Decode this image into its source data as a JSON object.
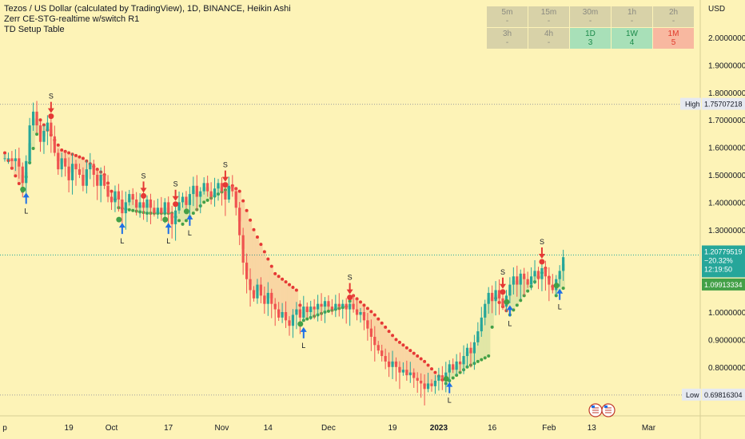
{
  "legend": {
    "title": "Tezos / US Dollar (calculated by TradingView), 1D, BINANCE, Heikin Ashi",
    "indicator1": "Zerr CE-STG-realtime w/switch R1",
    "indicator2": "TD Setup Table"
  },
  "tf_table": [
    [
      {
        "label": "5m",
        "value": "-",
        "state": "na"
      },
      {
        "label": "15m",
        "value": "-",
        "state": "na"
      },
      {
        "label": "30m",
        "value": "-",
        "state": "na"
      },
      {
        "label": "1h",
        "value": "-",
        "state": "na"
      },
      {
        "label": "2h",
        "value": "-",
        "state": "na"
      }
    ],
    [
      {
        "label": "3h",
        "value": "-",
        "state": "na"
      },
      {
        "label": "4h",
        "value": "-",
        "state": "na"
      },
      {
        "label": "1D",
        "value": "3",
        "state": "up"
      },
      {
        "label": "1W",
        "value": "4",
        "state": "up"
      },
      {
        "label": "1M",
        "value": "5",
        "state": "down"
      }
    ]
  ],
  "colors": {
    "up": "#26a69a",
    "down": "#ef5350",
    "bg": "#fdf3b7",
    "stop_up": "#43a047",
    "stop_down": "#e53935",
    "arrow_up": "#1e6fe6",
    "arrow_down": "#e53935",
    "axis_text": "#131722"
  },
  "price_axis": {
    "currency": "USD",
    "high_label": "High",
    "high_value": "1.75707218",
    "low_label": "Low",
    "low_value": "0.69816304",
    "current_price": "1.20779519",
    "current_change": "−20.32%",
    "countdown": "12:19:50",
    "stop_value": "1.09913334"
  },
  "icons": [
    "calendar-flag-icon",
    "us-flag-icon"
  ],
  "chart_data": {
    "type": "candlestick",
    "title": "Tezos / US Dollar (calculated by TradingView), 1D, BINANCE, Heikin Ashi",
    "ylim": [
      0.68,
      2.05
    ],
    "yticks": [
      2.0,
      1.9,
      1.8,
      1.7,
      1.6,
      1.5,
      1.4,
      1.3,
      1.2,
      1.1,
      1.0,
      0.9,
      0.8,
      0.7
    ],
    "ytick_labels": [
      "2.00000000",
      "1.90000000",
      "1.80000000",
      "1.70000000",
      "1.60000000",
      "1.50000000",
      "1.40000000",
      "1.30000000",
      "1.20000000",
      "1.10000000",
      "1.00000000",
      "0.90000000",
      "0.80000000",
      "0.70000000"
    ],
    "xticks": [
      {
        "label": "p",
        "day": 0
      },
      {
        "label": "19",
        "day": 18
      },
      {
        "label": "Oct",
        "day": 30
      },
      {
        "label": "17",
        "day": 46
      },
      {
        "label": "Nov",
        "day": 61
      },
      {
        "label": "14",
        "day": 74
      },
      {
        "label": "Dec",
        "day": 91
      },
      {
        "label": "19",
        "day": 109
      },
      {
        "label": "2023",
        "day": 122
      },
      {
        "label": "16",
        "day": 137
      },
      {
        "label": "Feb",
        "day": 153
      },
      {
        "label": "13",
        "day": 165
      },
      {
        "label": "Mar",
        "day": 181
      }
    ],
    "legend_text": [
      "S",
      "L"
    ],
    "markers": [
      {
        "day": 6,
        "type": "L"
      },
      {
        "day": 13,
        "type": "S"
      },
      {
        "day": 33,
        "type": "L"
      },
      {
        "day": 39,
        "type": "S"
      },
      {
        "day": 46,
        "type": "L"
      },
      {
        "day": 48,
        "type": "S"
      },
      {
        "day": 52,
        "type": "L"
      },
      {
        "day": 62,
        "type": "S"
      },
      {
        "day": 84,
        "type": "L"
      },
      {
        "day": 97,
        "type": "S"
      },
      {
        "day": 125,
        "type": "L"
      },
      {
        "day": 140,
        "type": "S"
      },
      {
        "day": 142,
        "type": "L"
      },
      {
        "day": 151,
        "type": "S"
      },
      {
        "day": 156,
        "type": "L"
      }
    ],
    "candles": [
      [
        1.56,
        1.56
      ],
      [
        1.56,
        1.56
      ],
      [
        1.56,
        1.55
      ],
      [
        1.55,
        1.56
      ],
      [
        1.56,
        1.53
      ],
      [
        1.53,
        1.47
      ],
      [
        1.47,
        1.55
      ],
      [
        1.55,
        1.68
      ],
      [
        1.68,
        1.73
      ],
      [
        1.73,
        1.68
      ],
      [
        1.68,
        1.62
      ],
      [
        1.62,
        1.66
      ],
      [
        1.66,
        1.69
      ],
      [
        1.69,
        1.64
      ],
      [
        1.64,
        1.58
      ],
      [
        1.58,
        1.52
      ],
      [
        1.52,
        1.56
      ],
      [
        1.56,
        1.53
      ],
      [
        1.53,
        1.48
      ],
      [
        1.48,
        1.54
      ],
      [
        1.54,
        1.52
      ],
      [
        1.52,
        1.5
      ],
      [
        1.5,
        1.46
      ],
      [
        1.46,
        1.52
      ],
      [
        1.52,
        1.54
      ],
      [
        1.54,
        1.5
      ],
      [
        1.5,
        1.46
      ],
      [
        1.46,
        1.5
      ],
      [
        1.5,
        1.46
      ],
      [
        1.46,
        1.42
      ],
      [
        1.42,
        1.4
      ],
      [
        1.4,
        1.44
      ],
      [
        1.44,
        1.41
      ],
      [
        1.41,
        1.36
      ],
      [
        1.36,
        1.4
      ],
      [
        1.4,
        1.43
      ],
      [
        1.43,
        1.41
      ],
      [
        1.41,
        1.38
      ],
      [
        1.38,
        1.4
      ],
      [
        1.4,
        1.38
      ],
      [
        1.38,
        1.41
      ],
      [
        1.41,
        1.38
      ],
      [
        1.38,
        1.36
      ],
      [
        1.36,
        1.38
      ],
      [
        1.38,
        1.36
      ],
      [
        1.36,
        1.4
      ],
      [
        1.4,
        1.36
      ],
      [
        1.36,
        1.32
      ],
      [
        1.32,
        1.37
      ],
      [
        1.37,
        1.4
      ],
      [
        1.4,
        1.42
      ],
      [
        1.42,
        1.39
      ],
      [
        1.39,
        1.43
      ],
      [
        1.43,
        1.46
      ],
      [
        1.46,
        1.42
      ],
      [
        1.42,
        1.44
      ],
      [
        1.44,
        1.47
      ],
      [
        1.47,
        1.44
      ],
      [
        1.44,
        1.42
      ],
      [
        1.42,
        1.45
      ],
      [
        1.45,
        1.47
      ],
      [
        1.47,
        1.44
      ],
      [
        1.44,
        1.41
      ],
      [
        1.41,
        1.46
      ],
      [
        1.46,
        1.44
      ],
      [
        1.44,
        1.38
      ],
      [
        1.38,
        1.28
      ],
      [
        1.28,
        1.18
      ],
      [
        1.18,
        1.12
      ],
      [
        1.12,
        1.08
      ],
      [
        1.08,
        1.05
      ],
      [
        1.05,
        1.1
      ],
      [
        1.1,
        1.06
      ],
      [
        1.06,
        1.03
      ],
      [
        1.03,
        1.07
      ],
      [
        1.07,
        1.03
      ],
      [
        1.03,
        1.01
      ],
      [
        1.01,
        0.98
      ],
      [
        0.98,
        1.0
      ],
      [
        1.0,
        0.97
      ],
      [
        0.97,
        0.95
      ],
      [
        0.95,
        0.99
      ],
      [
        0.99,
        1.01
      ],
      [
        1.01,
        0.98
      ],
      [
        0.98,
        1.02
      ],
      [
        1.02,
        1.0
      ],
      [
        1.0,
        1.02
      ],
      [
        1.02,
        1.01
      ],
      [
        1.01,
        1.03
      ],
      [
        1.03,
        1.02
      ],
      [
        1.02,
        1.04
      ],
      [
        1.04,
        1.02
      ],
      [
        1.02,
        1.01
      ],
      [
        1.01,
        1.03
      ],
      [
        1.03,
        1.02
      ],
      [
        1.02,
        1.03
      ],
      [
        1.03,
        1.01
      ],
      [
        1.01,
        1.03
      ],
      [
        1.03,
        1.01
      ],
      [
        1.01,
        0.99
      ],
      [
        0.99,
        1.0
      ],
      [
        1.0,
        0.97
      ],
      [
        0.97,
        0.94
      ],
      [
        0.94,
        0.91
      ],
      [
        0.91,
        0.88
      ],
      [
        0.88,
        0.86
      ],
      [
        0.86,
        0.84
      ],
      [
        0.84,
        0.82
      ],
      [
        0.82,
        0.8
      ],
      [
        0.8,
        0.82
      ],
      [
        0.82,
        0.8
      ],
      [
        0.8,
        0.78
      ],
      [
        0.78,
        0.79
      ],
      [
        0.79,
        0.77
      ],
      [
        0.77,
        0.78
      ],
      [
        0.78,
        0.76
      ],
      [
        0.76,
        0.75
      ],
      [
        0.75,
        0.74
      ],
      [
        0.74,
        0.72
      ],
      [
        0.72,
        0.74
      ],
      [
        0.74,
        0.73
      ],
      [
        0.73,
        0.75
      ],
      [
        0.75,
        0.77
      ],
      [
        0.77,
        0.76
      ],
      [
        0.76,
        0.78
      ],
      [
        0.78,
        0.81
      ],
      [
        0.81,
        0.79
      ],
      [
        0.79,
        0.82
      ],
      [
        0.82,
        0.81
      ],
      [
        0.81,
        0.84
      ],
      [
        0.84,
        0.87
      ],
      [
        0.87,
        0.85
      ],
      [
        0.85,
        0.89
      ],
      [
        0.89,
        0.93
      ],
      [
        0.93,
        0.98
      ],
      [
        0.98,
        1.03
      ],
      [
        1.03,
        1.07
      ],
      [
        1.07,
        1.04
      ],
      [
        1.04,
        1.08
      ],
      [
        1.08,
        1.05
      ],
      [
        1.05,
        1.02
      ],
      [
        1.02,
        1.06
      ],
      [
        1.06,
        1.1
      ],
      [
        1.1,
        1.13
      ],
      [
        1.13,
        1.1
      ],
      [
        1.1,
        1.14
      ],
      [
        1.14,
        1.12
      ],
      [
        1.12,
        1.1
      ],
      [
        1.1,
        1.13
      ],
      [
        1.13,
        1.15
      ],
      [
        1.15,
        1.12
      ],
      [
        1.12,
        1.16
      ],
      [
        1.16,
        1.13
      ],
      [
        1.13,
        1.1
      ],
      [
        1.1,
        1.08
      ],
      [
        1.08,
        1.12
      ],
      [
        1.12,
        1.15
      ],
      [
        1.15,
        1.2
      ]
    ],
    "stop_line": [
      [
        0,
        1.58,
        "down"
      ],
      [
        5,
        1.44,
        "up"
      ],
      [
        10,
        1.7,
        "down"
      ],
      [
        16,
        1.59,
        "down"
      ],
      [
        22,
        1.56,
        "down"
      ],
      [
        28,
        1.5,
        "down"
      ],
      [
        32,
        1.38,
        "up"
      ],
      [
        40,
        1.36,
        "up"
      ],
      [
        47,
        1.36,
        "up"
      ],
      [
        50,
        1.32,
        "up"
      ],
      [
        56,
        1.4,
        "up"
      ],
      [
        64,
        1.46,
        "down"
      ],
      [
        66,
        1.44,
        "down"
      ],
      [
        70,
        1.3,
        "down"
      ],
      [
        76,
        1.14,
        "down"
      ],
      [
        82,
        1.08,
        "down"
      ],
      [
        84,
        0.97,
        "up"
      ],
      [
        90,
        1.0,
        "up"
      ],
      [
        96,
        1.02,
        "up"
      ],
      [
        98,
        1.06,
        "down"
      ],
      [
        104,
        0.99,
        "down"
      ],
      [
        110,
        0.9,
        "down"
      ],
      [
        118,
        0.82,
        "down"
      ],
      [
        124,
        0.74,
        "up"
      ],
      [
        130,
        0.8,
        "up"
      ],
      [
        136,
        0.84,
        "up"
      ],
      [
        138,
        1.05,
        "down"
      ],
      [
        142,
        0.99,
        "up"
      ],
      [
        146,
        1.06,
        "up"
      ],
      [
        152,
        1.16,
        "down"
      ],
      [
        155,
        1.06,
        "up"
      ],
      [
        158,
        1.1,
        "up"
      ]
    ]
  }
}
